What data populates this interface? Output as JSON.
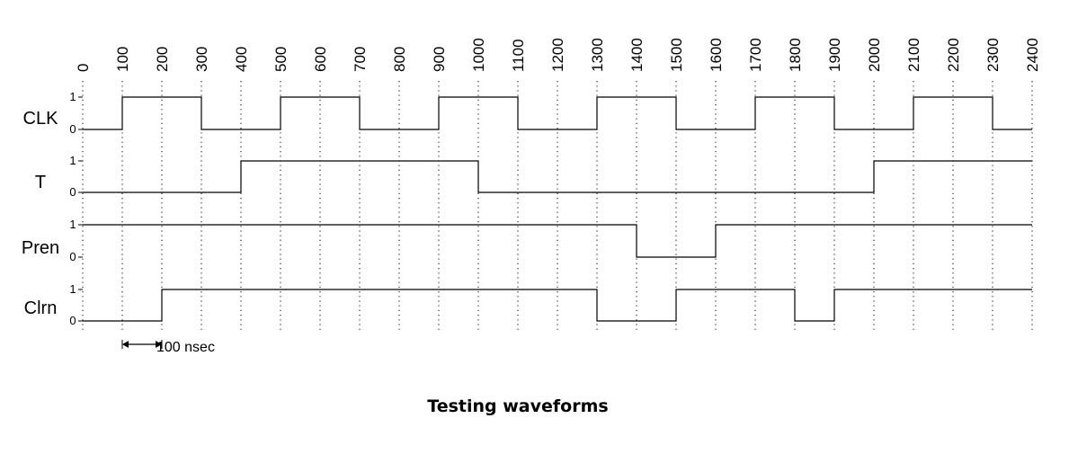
{
  "time_axis": {
    "ticks": [
      0,
      100,
      200,
      300,
      400,
      500,
      600,
      700,
      800,
      900,
      1000,
      1100,
      1200,
      1300,
      1400,
      1500,
      1600,
      1700,
      1800,
      1900,
      2000,
      2100,
      2200,
      2300,
      2400
    ],
    "tick_labels": [
      "0",
      "100",
      "200",
      "300",
      "400",
      "500",
      "600",
      "700",
      "800",
      "900",
      "1000",
      "1100",
      "1200",
      "1300",
      "1400",
      "1500",
      "1600",
      "1700",
      "1800",
      "1900",
      "2000",
      "2100",
      "2200",
      "2300",
      "2400"
    ]
  },
  "signals": [
    {
      "name": "CLK",
      "high_label": "1",
      "low_label": "0",
      "segments": [
        {
          "from": 0,
          "to": 100,
          "level": 0
        },
        {
          "from": 100,
          "to": 300,
          "level": 1
        },
        {
          "from": 300,
          "to": 500,
          "level": 0
        },
        {
          "from": 500,
          "to": 700,
          "level": 1
        },
        {
          "from": 700,
          "to": 900,
          "level": 0
        },
        {
          "from": 900,
          "to": 1100,
          "level": 1
        },
        {
          "from": 1100,
          "to": 1300,
          "level": 0
        },
        {
          "from": 1300,
          "to": 1500,
          "level": 1
        },
        {
          "from": 1500,
          "to": 1700,
          "level": 0
        },
        {
          "from": 1700,
          "to": 1900,
          "level": 1
        },
        {
          "from": 1900,
          "to": 2100,
          "level": 0
        },
        {
          "from": 2100,
          "to": 2300,
          "level": 1
        },
        {
          "from": 2300,
          "to": 2400,
          "level": 0
        }
      ]
    },
    {
      "name": "T",
      "high_label": "1",
      "low_label": "0",
      "segments": [
        {
          "from": 0,
          "to": 400,
          "level": 0
        },
        {
          "from": 400,
          "to": 1000,
          "level": 1
        },
        {
          "from": 1000,
          "to": 2000,
          "level": 0
        },
        {
          "from": 2000,
          "to": 2400,
          "level": 1
        }
      ]
    },
    {
      "name": "Pren",
      "high_label": "1",
      "low_label": "0",
      "segments": [
        {
          "from": 0,
          "to": 1400,
          "level": 1
        },
        {
          "from": 1400,
          "to": 1600,
          "level": 0
        },
        {
          "from": 1600,
          "to": 2400,
          "level": 1
        }
      ]
    },
    {
      "name": "Clrn",
      "high_label": "1",
      "low_label": "0",
      "segments": [
        {
          "from": 0,
          "to": 200,
          "level": 0
        },
        {
          "from": 200,
          "to": 1300,
          "level": 1
        },
        {
          "from": 1300,
          "to": 1500,
          "level": 0
        },
        {
          "from": 1500,
          "to": 1800,
          "level": 1
        },
        {
          "from": 1800,
          "to": 1900,
          "level": 0
        },
        {
          "from": 1900,
          "to": 2400,
          "level": 1
        }
      ]
    }
  ],
  "scale_marker": {
    "from": 100,
    "to": 200,
    "label": "100 nsec"
  },
  "caption": "Testing waveforms"
}
